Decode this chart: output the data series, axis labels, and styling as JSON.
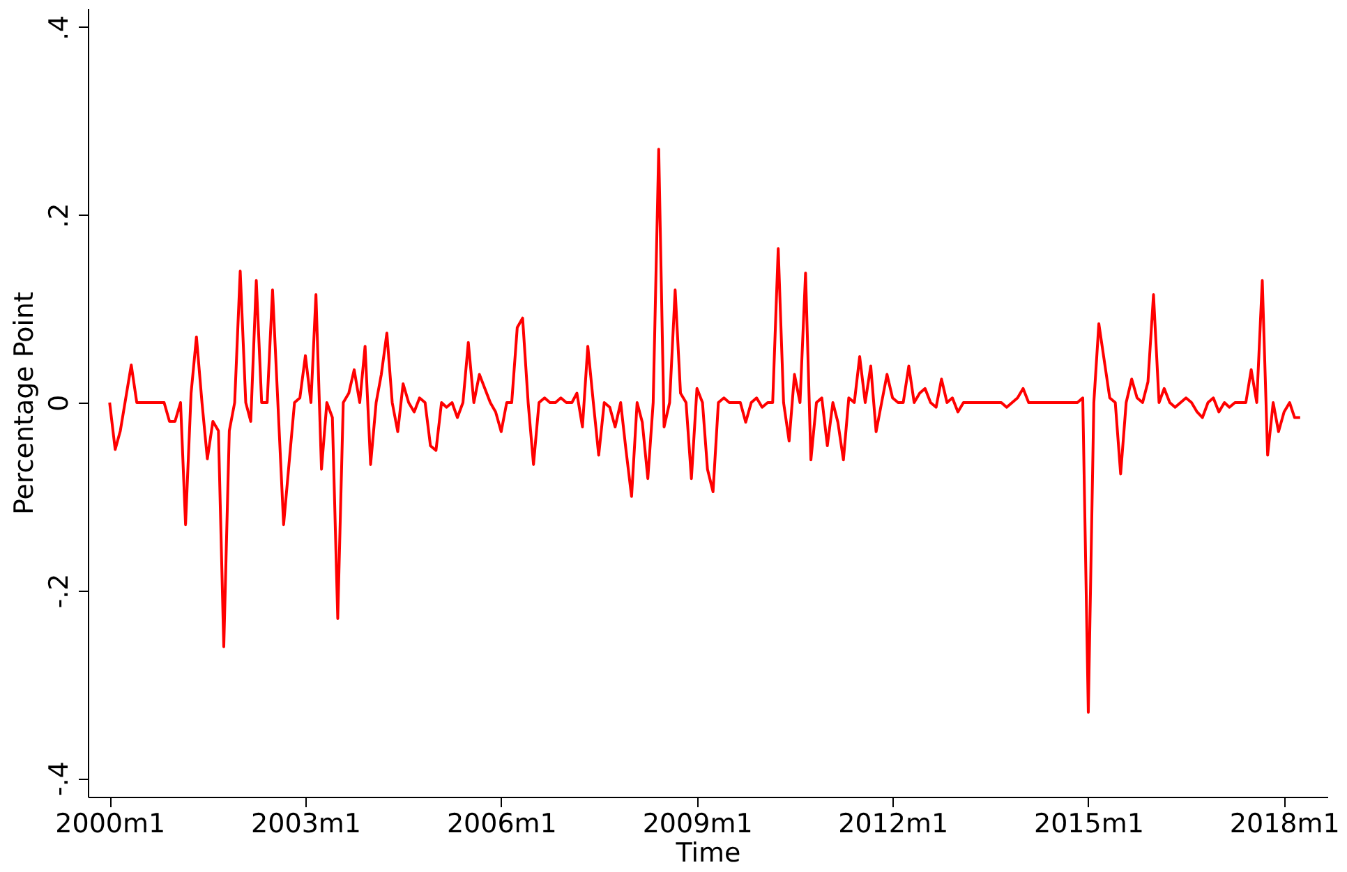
{
  "chart_data": {
    "type": "line",
    "xlabel": "Time",
    "ylabel": "Percentage Point",
    "xlim": [
      "1999-09",
      "2018-09"
    ],
    "ylim": [
      -0.42,
      0.42
    ],
    "xticks": [
      {
        "value": "2000-01",
        "label": "2000m1"
      },
      {
        "value": "2003-01",
        "label": "2003m1"
      },
      {
        "value": "2006-01",
        "label": "2006m1"
      },
      {
        "value": "2009-01",
        "label": "2009m1"
      },
      {
        "value": "2012-01",
        "label": "2012m1"
      },
      {
        "value": "2015-01",
        "label": "2015m1"
      },
      {
        "value": "2018-01",
        "label": "2018m1"
      }
    ],
    "yticks": [
      {
        "value": -0.4,
        "label": "-.4"
      },
      {
        "value": -0.2,
        "label": "-.2"
      },
      0,
      {
        "value": 0.2,
        "label": ".2"
      },
      {
        "value": 0.4,
        "label": ".4"
      }
    ],
    "grid": false,
    "legend": false,
    "marker": "none",
    "line_style": "solid",
    "series": [
      {
        "color": "#ff0000",
        "x": [
          "2000-01",
          "2000-02",
          "2000-03",
          "2000-05",
          "2000-06",
          "2000-11",
          "2000-12",
          "2001-01",
          "2001-02",
          "2001-03",
          "2001-04",
          "2001-05",
          "2001-06",
          "2001-07",
          "2001-08",
          "2001-09",
          "2001-10",
          "2001-11",
          "2001-12",
          "2002-01",
          "2002-02",
          "2002-03",
          "2002-04",
          "2002-05",
          "2002-06",
          "2002-07",
          "2002-09",
          "2002-10",
          "2002-11",
          "2002-12",
          "2003-01",
          "2003-02",
          "2003-03",
          "2003-04",
          "2003-05",
          "2003-06",
          "2003-07",
          "2003-08",
          "2003-09",
          "2003-10",
          "2003-11",
          "2003-12",
          "2004-01",
          "2004-02",
          "2004-03",
          "2004-04",
          "2004-05",
          "2004-06",
          "2004-07",
          "2004-08",
          "2004-09",
          "2004-10",
          "2004-11",
          "2004-12",
          "2005-01",
          "2005-02",
          "2005-03",
          "2005-04",
          "2005-05",
          "2005-06",
          "2005-07",
          "2005-08",
          "2005-09",
          "2005-11",
          "2005-12",
          "2006-01",
          "2006-02",
          "2006-03",
          "2006-04",
          "2006-05",
          "2006-06",
          "2006-07",
          "2006-08",
          "2006-09",
          "2006-10",
          "2006-11",
          "2006-12",
          "2007-01",
          "2007-02",
          "2007-03",
          "2007-04",
          "2007-05",
          "2007-06",
          "2007-07",
          "2007-08",
          "2007-09",
          "2007-10",
          "2007-11",
          "2007-12",
          "2008-01",
          "2008-02",
          "2008-03",
          "2008-04",
          "2008-05",
          "2008-06",
          "2008-07",
          "2008-08",
          "2008-09",
          "2008-10",
          "2008-11",
          "2008-12",
          "2009-01",
          "2009-02",
          "2009-03",
          "2009-04",
          "2009-05",
          "2009-06",
          "2009-07",
          "2009-09",
          "2009-10",
          "2009-11",
          "2009-12",
          "2010-01",
          "2010-02",
          "2010-03",
          "2010-04",
          "2010-05",
          "2010-06",
          "2010-07",
          "2010-08",
          "2010-09",
          "2010-10",
          "2010-11",
          "2010-12",
          "2011-01",
          "2011-02",
          "2011-03",
          "2011-04",
          "2011-05",
          "2011-06",
          "2011-07",
          "2011-08",
          "2011-09",
          "2011-10",
          "2011-11",
          "2011-12",
          "2012-01",
          "2012-02",
          "2012-03",
          "2012-04",
          "2012-05",
          "2012-06",
          "2012-07",
          "2012-08",
          "2012-09",
          "2012-10",
          "2012-11",
          "2012-12",
          "2013-01",
          "2013-02",
          "2013-09",
          "2013-10",
          "2013-12",
          "2014-01",
          "2014-02",
          "2014-11",
          "2014-12",
          "2015-01",
          "2015-02",
          "2015-03",
          "2015-05",
          "2015-06",
          "2015-07",
          "2015-08",
          "2015-09",
          "2015-10",
          "2015-11",
          "2015-12",
          "2016-01",
          "2016-02",
          "2016-03",
          "2016-04",
          "2016-05",
          "2016-07",
          "2016-08",
          "2016-09",
          "2016-10",
          "2016-11",
          "2016-12",
          "2017-01",
          "2017-02",
          "2017-03",
          "2017-04",
          "2017-06",
          "2017-07",
          "2017-08",
          "2017-09",
          "2017-10",
          "2017-11",
          "2017-12",
          "2018-01",
          "2018-02",
          "2018-03",
          "2018-04"
        ],
        "values": [
          0,
          -0.05,
          -0.03,
          0.04,
          0,
          0,
          -0.02,
          -0.02,
          0,
          -0.13,
          0.01,
          0.07,
          0,
          -0.06,
          -0.02,
          -0.03,
          -0.26,
          -0.03,
          0,
          0.14,
          0,
          -0.02,
          0.13,
          0,
          0,
          0.12,
          -0.13,
          -0.066,
          0,
          0.005,
          0.05,
          0,
          0.115,
          -0.071,
          0,
          -0.016,
          -0.23,
          0,
          0.01,
          0.035,
          0,
          0.06,
          -0.066,
          0,
          0.03,
          0.074,
          0,
          -0.031,
          0.02,
          0,
          -0.01,
          0.005,
          0,
          -0.046,
          -0.051,
          0,
          -0.005,
          0,
          -0.016,
          0,
          0.064,
          0,
          0.03,
          0,
          -0.01,
          -0.031,
          0,
          0,
          0.08,
          0.09,
          0,
          -0.066,
          0,
          0.005,
          0,
          0,
          0.005,
          0,
          0,
          0.01,
          -0.026,
          0.06,
          0,
          -0.056,
          0,
          -0.005,
          -0.026,
          0,
          -0.051,
          -0.1,
          0,
          -0.021,
          -0.081,
          0,
          0.27,
          -0.026,
          0,
          0.12,
          0.01,
          0,
          -0.081,
          0.015,
          0,
          -0.071,
          -0.095,
          0,
          0.005,
          0,
          0,
          -0.021,
          0,
          0.005,
          -0.005,
          0,
          0,
          0.164,
          0,
          -0.041,
          0.03,
          0,
          0.138,
          -0.061,
          0,
          0.005,
          -0.046,
          0,
          -0.021,
          -0.061,
          0.005,
          0,
          0.049,
          0,
          0.039,
          -0.031,
          0,
          0.03,
          0.005,
          0,
          0,
          0.039,
          0,
          0.01,
          0.015,
          0,
          -0.005,
          0.025,
          0,
          0.005,
          -0.01,
          0,
          0,
          -0.005,
          0.005,
          0.015,
          0,
          0,
          0.005,
          -0.33,
          0,
          0.084,
          0.005,
          0,
          -0.076,
          0,
          0.025,
          0.005,
          0,
          0.022,
          0.115,
          0,
          0.015,
          0,
          -0.005,
          0.005,
          0,
          -0.01,
          -0.016,
          0,
          0.005,
          -0.01,
          0,
          -0.005,
          0,
          0,
          0.035,
          0,
          0.13,
          -0.056,
          0,
          -0.031,
          -0.01,
          0,
          -0.016,
          -0.016
        ]
      }
    ]
  }
}
